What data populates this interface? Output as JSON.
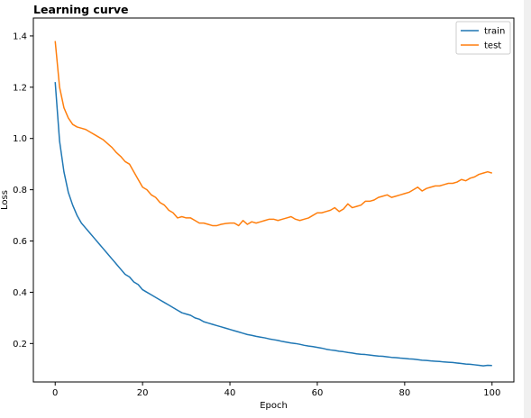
{
  "chart_data": {
    "type": "line",
    "title": "Learning curve",
    "xlabel": "Epoch",
    "ylabel": "Loss",
    "xlim": [
      -5,
      105
    ],
    "ylim": [
      0.05,
      1.47
    ],
    "xticks": [
      0,
      20,
      40,
      60,
      80,
      100
    ],
    "yticks": [
      0.2,
      0.4,
      0.6,
      0.8,
      1.0,
      1.2,
      1.4
    ],
    "xtick_labels": [
      "0",
      "20",
      "40",
      "60",
      "80",
      "100"
    ],
    "ytick_labels": [
      "0.2",
      "0.4",
      "0.6",
      "0.8",
      "1.0",
      "1.2",
      "1.4"
    ],
    "grid": false,
    "legend_position": "top-right",
    "series": [
      {
        "name": "train",
        "color": "#1f77b4",
        "x": [
          0,
          1,
          2,
          3,
          4,
          5,
          6,
          7,
          8,
          9,
          10,
          11,
          12,
          13,
          14,
          15,
          16,
          17,
          18,
          19,
          20,
          21,
          22,
          23,
          24,
          25,
          26,
          27,
          28,
          29,
          30,
          31,
          32,
          33,
          34,
          35,
          36,
          37,
          38,
          39,
          40,
          41,
          42,
          43,
          44,
          45,
          46,
          47,
          48,
          49,
          50,
          51,
          52,
          53,
          54,
          55,
          56,
          57,
          58,
          59,
          60,
          61,
          62,
          63,
          64,
          65,
          66,
          67,
          68,
          69,
          70,
          71,
          72,
          73,
          74,
          75,
          76,
          77,
          78,
          79,
          80,
          81,
          82,
          83,
          84,
          85,
          86,
          87,
          88,
          89,
          90,
          91,
          92,
          93,
          94,
          95,
          96,
          97,
          98,
          99,
          100
        ],
        "values": [
          1.22,
          0.99,
          0.87,
          0.79,
          0.74,
          0.7,
          0.67,
          0.65,
          0.63,
          0.61,
          0.59,
          0.57,
          0.55,
          0.53,
          0.51,
          0.49,
          0.47,
          0.46,
          0.44,
          0.43,
          0.41,
          0.4,
          0.39,
          0.38,
          0.37,
          0.36,
          0.35,
          0.34,
          0.33,
          0.32,
          0.315,
          0.31,
          0.3,
          0.295,
          0.285,
          0.28,
          0.275,
          0.27,
          0.265,
          0.26,
          0.255,
          0.25,
          0.245,
          0.24,
          0.235,
          0.232,
          0.228,
          0.225,
          0.222,
          0.218,
          0.215,
          0.212,
          0.208,
          0.205,
          0.202,
          0.2,
          0.197,
          0.193,
          0.19,
          0.188,
          0.185,
          0.182,
          0.178,
          0.175,
          0.173,
          0.17,
          0.168,
          0.165,
          0.163,
          0.16,
          0.158,
          0.157,
          0.155,
          0.153,
          0.151,
          0.15,
          0.148,
          0.146,
          0.145,
          0.143,
          0.142,
          0.14,
          0.139,
          0.137,
          0.135,
          0.134,
          0.132,
          0.131,
          0.13,
          0.128,
          0.127,
          0.126,
          0.124,
          0.122,
          0.12,
          0.119,
          0.117,
          0.115,
          0.113,
          0.115,
          0.114
        ]
      },
      {
        "name": "test",
        "color": "#ff7f0e",
        "x": [
          0,
          1,
          2,
          3,
          4,
          5,
          6,
          7,
          8,
          9,
          10,
          11,
          12,
          13,
          14,
          15,
          16,
          17,
          18,
          19,
          20,
          21,
          22,
          23,
          24,
          25,
          26,
          27,
          28,
          29,
          30,
          31,
          32,
          33,
          34,
          35,
          36,
          37,
          38,
          39,
          40,
          41,
          42,
          43,
          44,
          45,
          46,
          47,
          48,
          49,
          50,
          51,
          52,
          53,
          54,
          55,
          56,
          57,
          58,
          59,
          60,
          61,
          62,
          63,
          64,
          65,
          66,
          67,
          68,
          69,
          70,
          71,
          72,
          73,
          74,
          75,
          76,
          77,
          78,
          79,
          80,
          81,
          82,
          83,
          84,
          85,
          86,
          87,
          88,
          89,
          90,
          91,
          92,
          93,
          94,
          95,
          96,
          97,
          98,
          99,
          100
        ],
        "values": [
          1.38,
          1.2,
          1.12,
          1.08,
          1.055,
          1.045,
          1.04,
          1.035,
          1.025,
          1.015,
          1.005,
          0.995,
          0.98,
          0.965,
          0.945,
          0.93,
          0.91,
          0.9,
          0.87,
          0.84,
          0.81,
          0.8,
          0.78,
          0.77,
          0.75,
          0.74,
          0.72,
          0.71,
          0.69,
          0.695,
          0.69,
          0.69,
          0.68,
          0.67,
          0.67,
          0.665,
          0.66,
          0.66,
          0.665,
          0.668,
          0.67,
          0.67,
          0.66,
          0.68,
          0.665,
          0.675,
          0.67,
          0.675,
          0.68,
          0.685,
          0.685,
          0.68,
          0.685,
          0.69,
          0.695,
          0.685,
          0.68,
          0.685,
          0.69,
          0.7,
          0.71,
          0.71,
          0.715,
          0.72,
          0.73,
          0.715,
          0.725,
          0.745,
          0.73,
          0.735,
          0.74,
          0.755,
          0.755,
          0.76,
          0.77,
          0.775,
          0.78,
          0.77,
          0.775,
          0.78,
          0.785,
          0.79,
          0.8,
          0.81,
          0.795,
          0.805,
          0.81,
          0.815,
          0.815,
          0.82,
          0.825,
          0.825,
          0.83,
          0.84,
          0.835,
          0.845,
          0.85,
          0.86,
          0.865,
          0.87,
          0.865
        ]
      }
    ]
  }
}
